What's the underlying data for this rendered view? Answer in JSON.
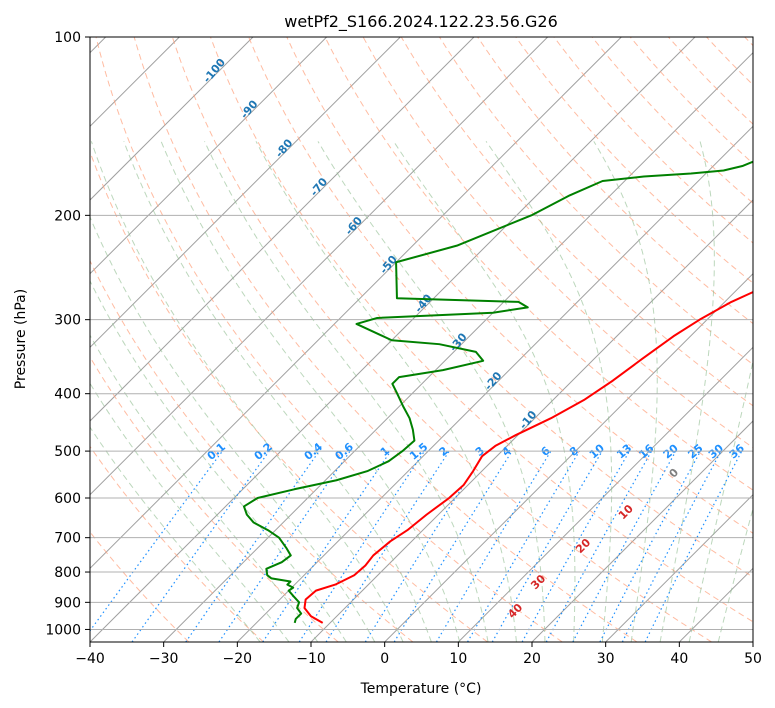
{
  "chart_data": {
    "type": "line",
    "subtype": "skew-t log-p",
    "title": "wetPf2_S166.2024.122.23.56.G26",
    "xlabel": "Temperature (°C)",
    "ylabel": "Pressure (hPa)",
    "xlim": [
      -40,
      50
    ],
    "ylim": [
      1050,
      100
    ],
    "y_scale": "log",
    "grid": true,
    "x_ticks": [
      -40,
      -30,
      -20,
      -10,
      0,
      10,
      20,
      30,
      40,
      50
    ],
    "y_ticks": [
      100,
      200,
      300,
      400,
      500,
      600,
      700,
      800,
      900,
      1000
    ],
    "colors": {
      "temperature": "#ff0000",
      "dewpoint": "#008000",
      "grid": "#b0b0b0",
      "isotherm": "#a0a0a0",
      "dry_adiabat": "#ffa07a",
      "moist_adiabat": "#8fbc8f",
      "mixing_ratio": "#1e90ff",
      "dry_label": "#1f77b4",
      "moist_label": "#d62728"
    },
    "series": [
      {
        "key": "temperature",
        "points": [
          [
            975,
            -11
          ],
          [
            950,
            -13.5
          ],
          [
            920,
            -15.5
          ],
          [
            890,
            -16.5
          ],
          [
            860,
            -16.3
          ],
          [
            840,
            -14.5
          ],
          [
            810,
            -13.2
          ],
          [
            780,
            -13.0
          ],
          [
            750,
            -13.3
          ],
          [
            710,
            -12.9
          ],
          [
            680,
            -12.1
          ],
          [
            640,
            -11.6
          ],
          [
            600,
            -10.8
          ],
          [
            570,
            -10.6
          ],
          [
            540,
            -11.2
          ],
          [
            510,
            -12.0
          ],
          [
            490,
            -11.6
          ],
          [
            470,
            -10.3
          ],
          [
            440,
            -7.8
          ],
          [
            410,
            -5.8
          ],
          [
            380,
            -4.5
          ],
          [
            350,
            -3.5
          ],
          [
            320,
            -2.3
          ],
          [
            300,
            -1.0
          ],
          [
            280,
            0.9
          ],
          [
            260,
            4.0
          ],
          [
            240,
            6.8
          ],
          [
            220,
            9.2
          ],
          [
            200,
            12.0
          ],
          [
            185,
            14.3
          ],
          [
            170,
            15.5
          ],
          [
            160,
            17.0
          ],
          [
            150,
            19.5
          ],
          [
            140,
            22.6
          ],
          [
            130,
            24.8
          ],
          [
            120,
            26.2
          ],
          [
            110,
            28.4
          ],
          [
            100,
            31.2
          ]
        ]
      },
      {
        "key": "dewpoint",
        "points": [
          [
            975,
            -14.8
          ],
          [
            960,
            -15.2
          ],
          [
            940,
            -15.2
          ],
          [
            920,
            -16.5
          ],
          [
            900,
            -17.0
          ],
          [
            880,
            -18.5
          ],
          [
            860,
            -20.0
          ],
          [
            850,
            -19.8
          ],
          [
            840,
            -21.0
          ],
          [
            830,
            -21.0
          ],
          [
            820,
            -24.0
          ],
          [
            810,
            -25.0
          ],
          [
            790,
            -26.0
          ],
          [
            770,
            -24.8
          ],
          [
            750,
            -24.5
          ],
          [
            730,
            -26.0
          ],
          [
            700,
            -28.5
          ],
          [
            680,
            -31.0
          ],
          [
            660,
            -34.0
          ],
          [
            640,
            -36.0
          ],
          [
            620,
            -37.5
          ],
          [
            600,
            -36.8
          ],
          [
            580,
            -33.0
          ],
          [
            560,
            -28.5
          ],
          [
            540,
            -25.5
          ],
          [
            520,
            -24.0
          ],
          [
            500,
            -23.5
          ],
          [
            480,
            -23.3
          ],
          [
            460,
            -25.0
          ],
          [
            440,
            -27.0
          ],
          [
            420,
            -29.5
          ],
          [
            400,
            -32.0
          ],
          [
            385,
            -34.0
          ],
          [
            375,
            -34.0
          ],
          [
            365,
            -29.0
          ],
          [
            352,
            -24.8
          ],
          [
            340,
            -27.0
          ],
          [
            330,
            -33.0
          ],
          [
            325,
            -40.0
          ],
          [
            305,
            -47.0
          ],
          [
            298,
            -45.0
          ],
          [
            292,
            -30.0
          ],
          [
            286,
            -26.0
          ],
          [
            280,
            -28.0
          ],
          [
            276,
            -45.0
          ],
          [
            240,
            -50.0
          ],
          [
            225,
            -44.0
          ],
          [
            200,
            -38.0
          ],
          [
            185,
            -35.5
          ],
          [
            175,
            -33.0
          ],
          [
            172,
            -28.0
          ],
          [
            170,
            -22.0
          ],
          [
            168,
            -18.0
          ],
          [
            165,
            -16.0
          ],
          [
            160,
            -14.5
          ],
          [
            150,
            -14.0
          ],
          [
            140,
            -13.5
          ],
          [
            130,
            -10.5
          ],
          [
            120,
            -8.0
          ],
          [
            110,
            -4.8
          ],
          [
            100,
            -1.5
          ]
        ]
      }
    ],
    "dry_adiabat_labels": [
      "-100",
      "-90",
      "-80",
      "-70",
      "-60",
      "-50",
      "-40",
      "-30",
      "-20",
      "-10"
    ],
    "moist_adiabat_labels": [
      "0",
      "10",
      "20",
      "30",
      "40"
    ],
    "mixing_ratio_labels": [
      "0.1",
      "0.2",
      "0.4",
      "0.6",
      "1",
      "1.5",
      "2",
      "3",
      "4",
      "6",
      "8",
      "10",
      "13",
      "16",
      "20",
      "25",
      "30",
      "36"
    ]
  }
}
